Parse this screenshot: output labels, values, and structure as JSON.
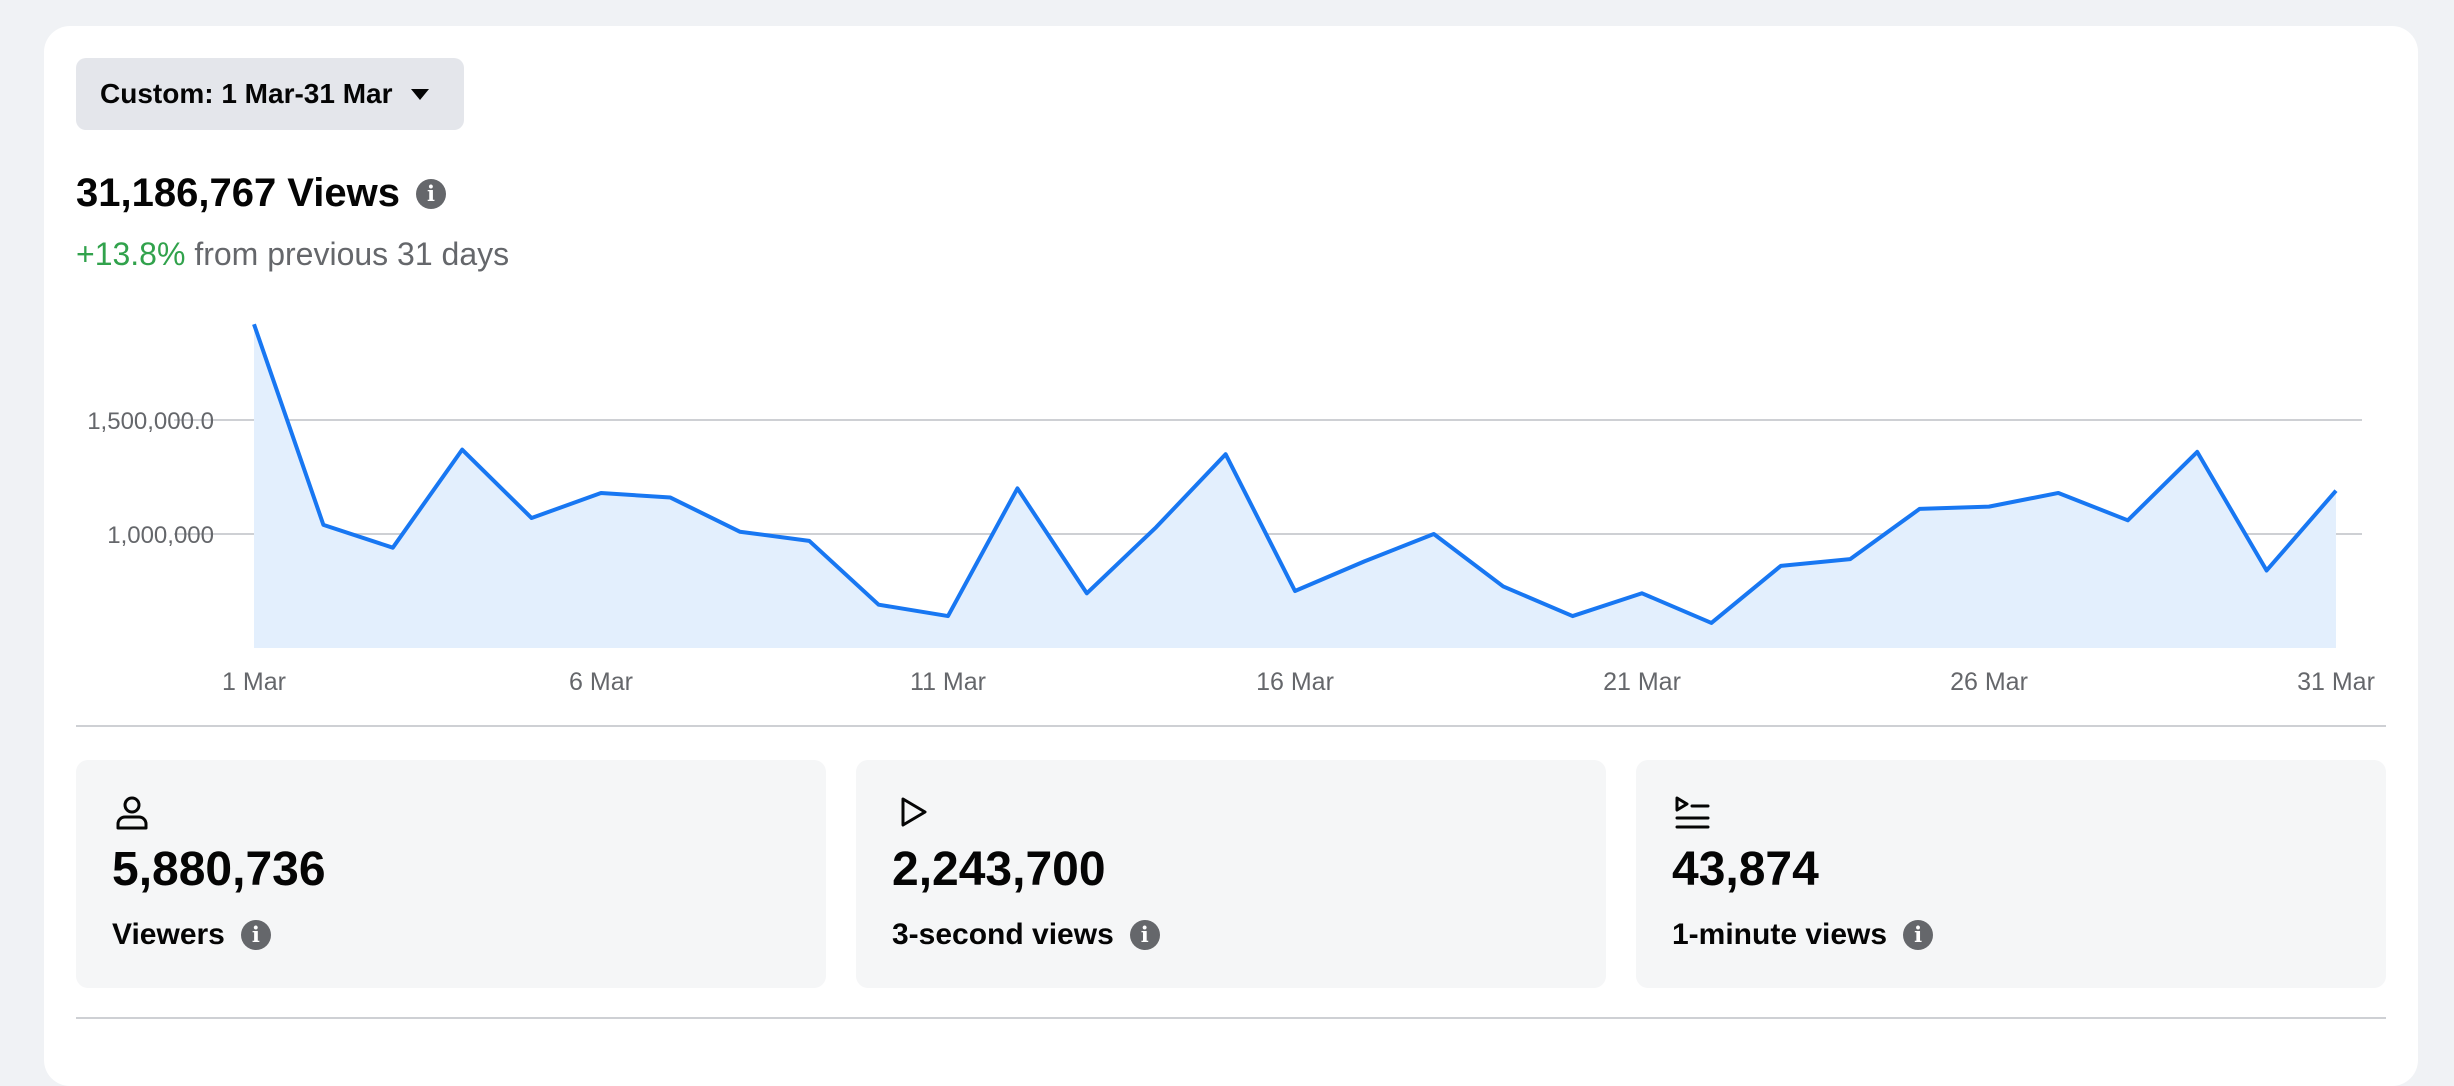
{
  "date_range": {
    "label": "Custom: 1 Mar-31 Mar"
  },
  "summary": {
    "views": "31,186,767 Views",
    "delta_pct": "+13.8%",
    "delta_text": "from previous 31 days"
  },
  "chart_data": {
    "type": "area",
    "x": [
      "1 Mar",
      "2 Mar",
      "3 Mar",
      "4 Mar",
      "5 Mar",
      "6 Mar",
      "7 Mar",
      "8 Mar",
      "9 Mar",
      "10 Mar",
      "11 Mar",
      "12 Mar",
      "13 Mar",
      "14 Mar",
      "15 Mar",
      "16 Mar",
      "17 Mar",
      "18 Mar",
      "19 Mar",
      "20 Mar",
      "21 Mar",
      "22 Mar",
      "23 Mar",
      "24 Mar",
      "25 Mar",
      "26 Mar",
      "27 Mar",
      "28 Mar",
      "29 Mar",
      "30 Mar",
      "31 Mar"
    ],
    "values": [
      1920000,
      1040000,
      940000,
      1370000,
      1070000,
      1180000,
      1160000,
      1010000,
      970000,
      690000,
      640000,
      1200000,
      740000,
      1030000,
      1350000,
      750000,
      880000,
      1000000,
      770000,
      640000,
      740000,
      610000,
      860000,
      890000,
      1110000,
      1120000,
      1180000,
      1060000,
      1360000,
      840000,
      1190000
    ],
    "tick_labels_x": [
      "1 Mar",
      "6 Mar",
      "11 Mar",
      "16 Mar",
      "21 Mar",
      "26 Mar",
      "31 Mar"
    ],
    "tick_labels_y": [
      "1,000,000",
      "1,500,000.0"
    ],
    "y_ticks": [
      1000000,
      1500000
    ],
    "ylim": [
      500000,
      2000000
    ],
    "grid": true,
    "line_color": "#1877f2",
    "fill_color": "#e3effd"
  },
  "stats": [
    {
      "icon": "person-icon",
      "value": "5,880,736",
      "label": "Viewers"
    },
    {
      "icon": "play-icon",
      "value": "2,243,700",
      "label": "3-second views"
    },
    {
      "icon": "list-play-icon",
      "value": "43,874",
      "label": "1-minute views"
    }
  ],
  "info_glyph": "i"
}
